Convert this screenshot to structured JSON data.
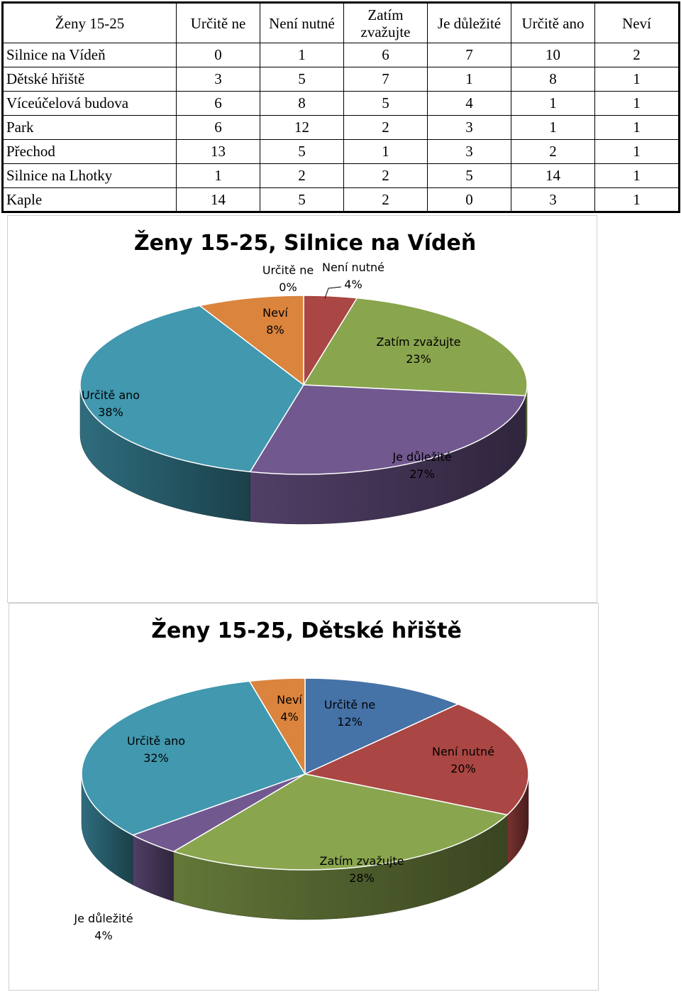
{
  "table": {
    "corner": "Ženy 15-25",
    "columns": [
      "Určitě ne",
      "Není nutné",
      "Zatím zvažujte",
      "Je důležité",
      "Určitě ano",
      "Neví"
    ],
    "rows": [
      {
        "label": "Silnice na Vídeň",
        "values": [
          "0",
          "1",
          "6",
          "7",
          "10",
          "2"
        ]
      },
      {
        "label": "Dětské hřiště",
        "values": [
          "3",
          "5",
          "7",
          "1",
          "8",
          "1"
        ]
      },
      {
        "label": "Víceúčelová budova",
        "values": [
          "6",
          "8",
          "5",
          "4",
          "1",
          "1"
        ]
      },
      {
        "label": "Park",
        "values": [
          "6",
          "12",
          "2",
          "3",
          "1",
          "1"
        ]
      },
      {
        "label": "Přechod",
        "values": [
          "13",
          "5",
          "1",
          "3",
          "2",
          "1"
        ]
      },
      {
        "label": "Silnice na Lhotky",
        "values": [
          "1",
          "2",
          "2",
          "5",
          "14",
          "1"
        ]
      },
      {
        "label": "Kaple",
        "values": [
          "14",
          "5",
          "2",
          "0",
          "3",
          "1"
        ]
      }
    ]
  },
  "colors": {
    "urcite_ne": "#4572A7",
    "neni_nutne": "#AA4643",
    "zatim_zvazujte": "#89A54E",
    "je_dulezite": "#71588F",
    "urcite_ano": "#4198AF",
    "nevi": "#DB843D"
  },
  "chart_data": [
    {
      "type": "pie",
      "title": "Ženy 15-25, Silnice na Vídeň",
      "categories": [
        "Určitě ne",
        "Není nutné",
        "Zatím zvažujte",
        "Je důležité",
        "Určitě ano",
        "Neví"
      ],
      "values": [
        0,
        1,
        6,
        7,
        10,
        2
      ],
      "percent_labels": [
        "0%",
        "4%",
        "23%",
        "27%",
        "38%",
        "8%"
      ],
      "legend": "none",
      "three_d": true
    },
    {
      "type": "pie",
      "title": "Ženy 15-25, Dětské hřiště",
      "categories": [
        "Určitě ne",
        "Není nutné",
        "Zatím zvažujte",
        "Je důležité",
        "Určitě ano",
        "Neví"
      ],
      "values": [
        3,
        5,
        7,
        1,
        8,
        1
      ],
      "percent_labels": [
        "12%",
        "20%",
        "28%",
        "4%",
        "32%",
        "4%"
      ],
      "legend": "none",
      "three_d": true
    }
  ]
}
